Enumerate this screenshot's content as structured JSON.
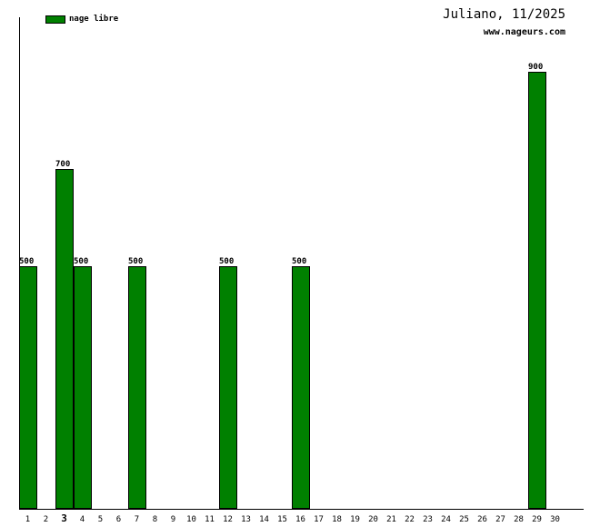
{
  "header": {
    "title": "Juliano, 11/2025",
    "website": "www.nageurs.com"
  },
  "legend": {
    "label": "nage libre",
    "color": "#008000"
  },
  "chart_data": {
    "type": "bar",
    "title": "Juliano, 11/2025",
    "subtitle": "www.nageurs.com",
    "legend_entries": [
      "nage libre"
    ],
    "legend_position": "top-left",
    "categories": [
      "1",
      "2",
      "3",
      "4",
      "5",
      "6",
      "7",
      "8",
      "9",
      "10",
      "11",
      "12",
      "13",
      "14",
      "15",
      "16",
      "17",
      "18",
      "19",
      "20",
      "21",
      "22",
      "23",
      "24",
      "25",
      "26",
      "27",
      "28",
      "29",
      "30"
    ],
    "highlighted_category": "3",
    "series": [
      {
        "name": "nage libre",
        "color": "#008000",
        "points": [
          {
            "x": "1",
            "y": 500
          },
          {
            "x": "3",
            "y": 700
          },
          {
            "x": "4",
            "y": 500
          },
          {
            "x": "7",
            "y": 500
          },
          {
            "x": "12",
            "y": 500
          },
          {
            "x": "16",
            "y": 500
          },
          {
            "x": "29",
            "y": 900
          }
        ]
      }
    ],
    "value_labels_shown": true,
    "bar_outline_color": "#000000",
    "axis_color": "#000000",
    "xlabel": "",
    "ylabel": "",
    "ylim": [
      0,
      1010
    ],
    "grid": false
  }
}
